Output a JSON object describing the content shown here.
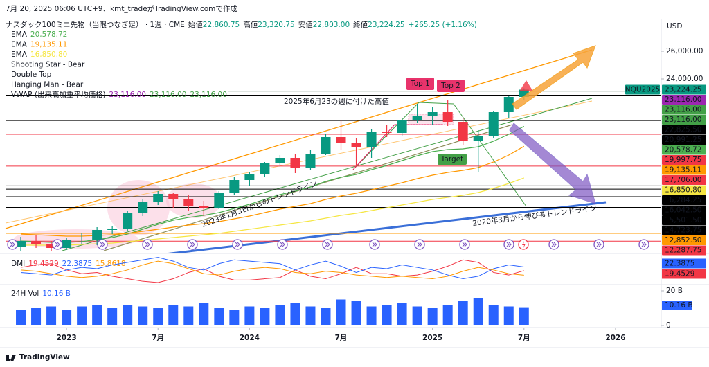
{
  "header": "7月 20, 2025 06:06 UTC+9、kmt_tradeがTradingView.comで作成",
  "footer": "TradingView",
  "chart_data": [
    {
      "type": "candlestick",
      "title": "ナスダック100ミニ先物（当限つなぎ足） · 1週 · CME",
      "ohlc_legend": [
        {
          "label": "始値",
          "price": "22,860.75"
        },
        {
          "label": "高値",
          "price": "23,320.75"
        },
        {
          "label": "安値",
          "price": "22,803.00"
        },
        {
          "label": "終値",
          "price": "23,224.25"
        }
      ],
      "change": "+265.25 (+1.16%)",
      "symbol": "NQU2025",
      "currency": "USD",
      "last": {
        "value": 23224.25,
        "label": "23,224.25"
      },
      "up_color": "#089981",
      "down_color": "#f23645",
      "x": [
        "2022-10",
        "2022-11",
        "2022-12",
        "2023-01",
        "2023-02",
        "2023-03",
        "2023-04",
        "2023-05",
        "2023-06",
        "2023-07",
        "2023-08",
        "2023-09",
        "2023-10",
        "2023-11",
        "2023-12",
        "2024-01",
        "2024-02",
        "2024-03",
        "2024-04",
        "2024-05",
        "2024-06",
        "2024-07",
        "2024-08",
        "2024-09",
        "2024-10",
        "2024-11",
        "2024-12",
        "2025-01",
        "2025-02",
        "2025-03",
        "2025-04",
        "2025-05",
        "2025-06",
        "2025-07"
      ],
      "open": [
        11900,
        12300,
        12100,
        11800,
        12350,
        12400,
        13100,
        13200,
        14300,
        15100,
        15700,
        15300,
        14800,
        14700,
        15800,
        16700,
        17100,
        17900,
        18300,
        17600,
        18600,
        19800,
        19400,
        19100,
        20200,
        20100,
        21000,
        21300,
        21600,
        20900,
        19500,
        19900,
        21600,
        22700
      ],
      "high": [
        12600,
        12700,
        12300,
        12500,
        12900,
        13300,
        13400,
        14500,
        15300,
        15900,
        15800,
        15600,
        15200,
        15900,
        16900,
        17300,
        18000,
        18500,
        18600,
        18900,
        20000,
        21000,
        19700,
        20400,
        20700,
        21200,
        22200,
        22000,
        22500,
        21200,
        20300,
        21700,
        22800,
        23320.75
      ],
      "low": [
        11600,
        11800,
        11600,
        11650,
        12100,
        12000,
        12800,
        13000,
        14100,
        14900,
        14700,
        14500,
        14100,
        14600,
        15600,
        16300,
        16900,
        17800,
        17200,
        17400,
        18500,
        18900,
        17700,
        18300,
        19800,
        19900,
        20800,
        20700,
        20600,
        19200,
        17300,
        19700,
        21200,
        22500
      ],
      "close": [
        12300,
        12100,
        11800,
        12350,
        12400,
        13100,
        13200,
        14300,
        15100,
        15700,
        15300,
        14800,
        14700,
        15800,
        16700,
        17100,
        17900,
        18300,
        17600,
        18600,
        19800,
        19400,
        19100,
        20200,
        20100,
        21000,
        21300,
        21600,
        20900,
        19500,
        19900,
        21600,
        22700,
        23224.25
      ],
      "xlim": [
        "2022-09",
        "2026-04"
      ],
      "xticks": [
        {
          "value": "2023-01",
          "label": "2023"
        },
        {
          "value": "2023-07",
          "label": "7月"
        },
        {
          "value": "2024-01",
          "label": "2024"
        },
        {
          "value": "2024-07",
          "label": "7月"
        },
        {
          "value": "2025-01",
          "label": "2025"
        },
        {
          "value": "2025-07",
          "label": "7月"
        },
        {
          "value": "2026-01",
          "label": "2026"
        }
      ],
      "ylim": [
        11450,
        28200
      ],
      "yticks": [
        {
          "value": 26000,
          "label": "26,000.00"
        },
        {
          "value": 24000,
          "label": "24,000.00"
        }
      ],
      "series": [
        {
          "name": "EMA",
          "color": "#4caf50",
          "last_label": "20,578.72",
          "values": [
            12300,
            12250,
            12200,
            12200,
            12250,
            12400,
            12550,
            12800,
            13150,
            13500,
            13800,
            14000,
            14150,
            14350,
            14650,
            14950,
            15300,
            15650,
            15900,
            16200,
            16600,
            16900,
            17100,
            17450,
            17750,
            18100,
            18450,
            18750,
            18900,
            18950,
            19100,
            19500,
            20000,
            20578.72
          ]
        },
        {
          "name": "EMA",
          "color": "#ff9800",
          "last_label": "19,135.11",
          "values": [
            12800,
            12750,
            12700,
            12650,
            12650,
            12700,
            12750,
            12850,
            13000,
            13150,
            13300,
            13450,
            13550,
            13700,
            13900,
            14100,
            14350,
            14600,
            14800,
            15000,
            15300,
            15550,
            15750,
            16000,
            16250,
            16500,
            16800,
            17050,
            17250,
            17400,
            17600,
            18000,
            18500,
            19135.11
          ]
        },
        {
          "name": "EMA",
          "color": "#f5e642",
          "last_label": "16,850.80",
          "values": [
            12000,
            12000,
            12000,
            12000,
            12050,
            12100,
            12150,
            12250,
            12350,
            12450,
            12550,
            12650,
            12750,
            12850,
            13000,
            13150,
            13300,
            13450,
            13600,
            13750,
            13950,
            14150,
            14300,
            14500,
            14700,
            14900,
            15100,
            15300,
            15450,
            15600,
            15800,
            16100,
            16450,
            16850.8
          ]
        }
      ],
      "patterns": [
        "Shooting Star - Bear",
        "Double Top",
        "Hanging Man - Bear"
      ],
      "vwap": {
        "name": "VWAP (出来高加重平均価格)",
        "values": [
          23116,
          23116,
          23116
        ],
        "value_labels": [
          "23,116.00",
          "23,116.00",
          "23,116.00"
        ],
        "colors": [
          "#9c27b0",
          "#43a047",
          "#43a047"
        ]
      },
      "levels": [
        {
          "value": 22825.5,
          "label": "22,825.50",
          "color": "#000000"
        },
        {
          "value": 20991.25,
          "label": "20,991.25",
          "color": "#000000"
        },
        {
          "value": 19997.75,
          "label": "19,997.75",
          "color": "#f23645"
        },
        {
          "value": 17706,
          "label": "17,706.00",
          "color": "#f23645"
        },
        {
          "value": 16284.25,
          "label": "16,284.25",
          "color": "#000000"
        },
        {
          "value": 16042.5,
          "label": "16,042.50",
          "color": "#000000"
        },
        {
          "value": 15501.5,
          "label": "15,501.50",
          "color": "#000000"
        },
        {
          "value": 14723.75,
          "label": "14,723.75",
          "color": "#000000"
        },
        {
          "value": 12852.5,
          "label": "12,852.50",
          "color": "#ff9800"
        },
        {
          "value": 12287.75,
          "label": "12,287.75",
          "color": "#f23645"
        }
      ],
      "annotations": [
        "Top 1",
        "Top 2",
        "Target",
        "2025年6月23の週に付けた高値",
        "2023年1月3日からのトレンドライン",
        "2020年3月から伸びるトレンドライン"
      ]
    },
    {
      "type": "line",
      "title": "DMI",
      "ylim": [
        10,
        32
      ],
      "series": [
        {
          "color": "#f23645",
          "label": "19.4529",
          "values": [
            22,
            24,
            25,
            20,
            17,
            18,
            15,
            13,
            11,
            10,
            13,
            18,
            21,
            15,
            12,
            12,
            13,
            14,
            20,
            15,
            13,
            17,
            22,
            17,
            17,
            15,
            16,
            19,
            23,
            28,
            26,
            18,
            16,
            19.4529
          ]
        },
        {
          "color": "#2962ff",
          "label": "22.3875",
          "values": [
            18,
            17,
            16,
            20,
            22,
            21,
            24,
            26,
            28,
            30,
            27,
            22,
            20,
            25,
            28,
            27,
            26,
            25,
            20,
            24,
            27,
            23,
            18,
            22,
            21,
            24,
            22,
            20,
            16,
            13,
            15,
            21,
            24,
            22.3875
          ]
        },
        {
          "color": "#ff9800",
          "label": "15.8618",
          "values": [
            20,
            19,
            17,
            15,
            14,
            15,
            17,
            20,
            24,
            27,
            25,
            21,
            17,
            16,
            19,
            21,
            22,
            21,
            18,
            17,
            19,
            18,
            16,
            15,
            14,
            15,
            14,
            13,
            15,
            19,
            22,
            20,
            17,
            15.8618
          ]
        }
      ]
    },
    {
      "type": "bar",
      "title": "24H Vol",
      "color": "#2962ff",
      "last_label": "10.16 B",
      "ylim": [
        0,
        23.2
      ],
      "yticks": [
        {
          "value": 20,
          "label": "20 B"
        },
        0
      ],
      "values": [
        9,
        10,
        11,
        9,
        11,
        12,
        10,
        12,
        11,
        10,
        12,
        11,
        13,
        10,
        9,
        11,
        10,
        12,
        13,
        11,
        10,
        15,
        14,
        11,
        12,
        13,
        11,
        10,
        12,
        14,
        16,
        12,
        11,
        10.16
      ]
    }
  ]
}
